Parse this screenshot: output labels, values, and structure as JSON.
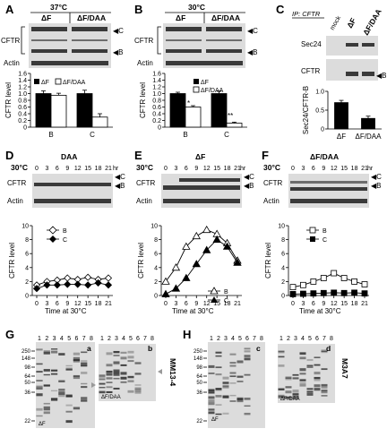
{
  "colors": {
    "black": "#000000",
    "blot_bg": "#dcdcdc",
    "band": "#3a3a3a",
    "arrow_gray": "#999999"
  },
  "panels": {
    "A": "A",
    "B": "B",
    "C": "C",
    "D": "D",
    "E": "E",
    "F": "F",
    "G": "G",
    "H": "H"
  },
  "panel_a": {
    "temp": "37°C",
    "dF": "ΔF",
    "dFDAA": "ΔF/DAA",
    "row_cftr": "CFTR",
    "row_actin": "Actin",
    "arrow_c": "C",
    "arrow_b": "B",
    "legend_df": "ΔF",
    "legend_dfdaa": "ΔF/DAA",
    "star": "*"
  },
  "panel_b": {
    "temp": "30°C",
    "dF": "ΔF",
    "dFDAA": "ΔF/DAA",
    "row_cftr": "CFTR",
    "row_actin": "Actin",
    "arrow_c": "C",
    "arrow_b": "B",
    "legend_df": "ΔF",
    "legend_dfdaa": "ΔF/DAA",
    "star1": "*",
    "star2": "**"
  },
  "panel_c": {
    "ip": "IP: CFTR",
    "mock": "mock",
    "dF": "ΔF",
    "dFDAA": "ΔF/DAA",
    "row_sec24": "Sec24",
    "row_cftr": "CFTR",
    "arrow_b": "B",
    "ylabel": "Sec24/CFTR-B",
    "xcat1": "ΔF",
    "xcat2": "ΔF/DAA",
    "star": "**"
  },
  "panel_d": {
    "temp": "30°C",
    "title": "DAA",
    "hr": "hr",
    "row_cftr": "CFTR",
    "row_actin": "Actin",
    "arrow_c": "C",
    "arrow_b": "B",
    "xlabel": "Time at 30°C",
    "legend_b": "B",
    "legend_c": "C"
  },
  "panel_e": {
    "temp": "30°C",
    "title": "ΔF",
    "hr": "hr",
    "row_cftr": "CFTR",
    "row_actin": "Actin",
    "arrow_c": "C",
    "arrow_b": "B",
    "xlabel": "Time at 30°C",
    "legend_b": "B",
    "legend_c": "C"
  },
  "panel_f": {
    "temp": "30°C",
    "title": "ΔF/DAA",
    "hr": "hr",
    "row_cftr": "CFTR",
    "row_actin": "Actin",
    "arrow_c": "C",
    "arrow_b": "B",
    "xlabel": "Time at 30°C",
    "legend_b": "B",
    "legend_c": "C"
  },
  "time_labels": [
    "0",
    "3",
    "6",
    "9",
    "12",
    "15",
    "18",
    "21"
  ],
  "panel_g": {
    "lanes": [
      "1",
      "2",
      "3",
      "4",
      "5",
      "6",
      "7",
      "8"
    ],
    "mw": [
      "250",
      "148",
      "98",
      "64",
      "50",
      "36",
      "22"
    ],
    "sub_a": "a",
    "sub_b": "b",
    "label_a": "ΔF",
    "label_b": "ΔF/DAA",
    "antibody": "MM13-4"
  },
  "panel_h": {
    "lanes": [
      "1",
      "2",
      "3",
      "4",
      "5",
      "6",
      "7",
      "8"
    ],
    "mw": [
      "250",
      "148",
      "98",
      "64",
      "50",
      "36",
      "22"
    ],
    "sub_c": "c",
    "sub_d": "d",
    "label_c": "ΔF",
    "label_d": "ΔF/DAA",
    "antibody": "M3A7"
  },
  "chart_data": [
    {
      "type": "bar",
      "id": "A",
      "categories": [
        "B",
        "C"
      ],
      "series": [
        {
          "name": "ΔF",
          "values": [
            1.0,
            1.0
          ],
          "errors": [
            0.08,
            0.1
          ]
        },
        {
          "name": "ΔF/DAA",
          "values": [
            0.95,
            0.3
          ],
          "errors": [
            0.06,
            0.1
          ]
        }
      ],
      "ylabel": "CFTR level",
      "ylim": [
        0,
        1.6
      ],
      "yticks": [
        "0",
        "0.2",
        "0.4",
        "0.6",
        "0.8",
        "1.0",
        "1.2",
        "1.4",
        "1.6"
      ]
    },
    {
      "type": "bar",
      "id": "B",
      "categories": [
        "B",
        "C"
      ],
      "series": [
        {
          "name": "ΔF",
          "values": [
            1.0,
            1.0
          ],
          "errors": [
            0.04,
            0.07
          ]
        },
        {
          "name": "ΔF/DAA",
          "values": [
            0.6,
            0.12
          ],
          "errors": [
            0.04,
            0.03
          ]
        }
      ],
      "ylabel": "CFTR level",
      "ylim": [
        0,
        1.6
      ],
      "yticks": [
        "0",
        "0.2",
        "0.4",
        "0.6",
        "0.8",
        "1.0",
        "1.2",
        "1.4",
        "1.6"
      ]
    },
    {
      "type": "bar",
      "id": "C",
      "categories": [
        "ΔF",
        "ΔF/DAA"
      ],
      "values": [
        0.7,
        0.28
      ],
      "errors": [
        0.06,
        0.06
      ],
      "ylabel": "Sec24/CFTR-B",
      "ylim": [
        0,
        1.0
      ],
      "yticks": [
        "0",
        "0.5",
        "1.0"
      ]
    },
    {
      "type": "line",
      "id": "D",
      "x": [
        0,
        3,
        6,
        9,
        12,
        15,
        18,
        21
      ],
      "series": [
        {
          "name": "B",
          "values": [
            1.5,
            2.0,
            2.2,
            2.5,
            2.3,
            2.6,
            2.3,
            2.5
          ]
        },
        {
          "name": "C",
          "values": [
            1.0,
            1.5,
            1.5,
            1.6,
            1.6,
            1.5,
            1.8,
            1.5
          ]
        }
      ],
      "ylabel": "CFTR level",
      "xlabel": "Time at 30°C",
      "ylim": [
        0,
        10
      ],
      "yticks": [
        "0",
        "2",
        "4",
        "6",
        "8",
        "10"
      ]
    },
    {
      "type": "line",
      "id": "E",
      "x": [
        0,
        3,
        6,
        9,
        12,
        15,
        18,
        21
      ],
      "series": [
        {
          "name": "B",
          "values": [
            2.0,
            4.0,
            7.0,
            8.5,
            9.4,
            8.8,
            7.5,
            5.0
          ]
        },
        {
          "name": "C",
          "values": [
            0.2,
            1.0,
            2.5,
            4.5,
            6.5,
            8.0,
            7.0,
            4.7
          ]
        }
      ],
      "ylabel": "CFTR level",
      "xlabel": "Time at 30°C",
      "ylim": [
        0,
        10
      ],
      "yticks": [
        "0",
        "2",
        "4",
        "6",
        "8",
        "10"
      ]
    },
    {
      "type": "line",
      "id": "F",
      "x": [
        0,
        3,
        6,
        9,
        12,
        15,
        18,
        21
      ],
      "series": [
        {
          "name": "B",
          "values": [
            1.2,
            1.5,
            2.0,
            2.5,
            3.2,
            2.5,
            2.0,
            1.6
          ]
        },
        {
          "name": "C",
          "values": [
            0.2,
            0.25,
            0.3,
            0.35,
            0.4,
            0.35,
            0.4,
            0.3
          ]
        }
      ],
      "ylabel": "CFTR level",
      "xlabel": "Time at 30°C",
      "ylim": [
        0,
        10
      ],
      "yticks": [
        "0",
        "2",
        "4",
        "6",
        "8",
        "10"
      ]
    }
  ]
}
